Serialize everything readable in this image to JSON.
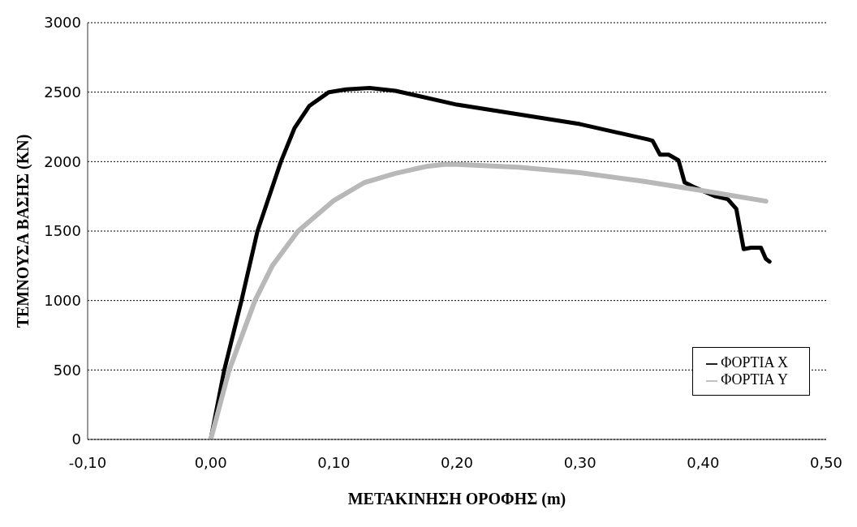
{
  "chart_data": {
    "type": "line",
    "xlabel": "ΜΕΤΑΚΙΝΗΣΗ ΟΡΟΦΗΣ (m)",
    "ylabel": "ΤΕΜΝΟΥΣΑ ΒΑΣΗΣ (KN)",
    "xlim": [
      -0.1,
      0.5
    ],
    "xticks": [
      {
        "value": -0.1,
        "label": "-0,10"
      },
      {
        "value": 0,
        "label": "0,00"
      },
      {
        "value": 0.1,
        "label": "0,10"
      },
      {
        "value": 0.2,
        "label": "0,20"
      },
      {
        "value": 0.3,
        "label": "0,30"
      },
      {
        "value": 0.4,
        "label": "0,40"
      },
      {
        "value": 0.5,
        "label": "0,50"
      }
    ],
    "ylim": [
      0,
      3000
    ],
    "yticks": [
      0,
      500,
      1000,
      1500,
      2000,
      2500,
      3000
    ],
    "grid": "y",
    "legend": "bottom right",
    "marker": "none",
    "line_style": "solid",
    "series": [
      {
        "name": "ΦΟΡΤΙΑ X",
        "color": "#000000",
        "x": [
          0,
          0.011,
          0.025,
          0.038,
          0.057,
          0.068,
          0.08,
          0.096,
          0.11,
          0.129,
          0.15,
          0.2,
          0.25,
          0.3,
          0.355,
          0.359,
          0.365,
          0.372,
          0.38,
          0.385,
          0.392,
          0.41,
          0.42,
          0.427,
          0.433,
          0.439,
          0.447,
          0.451,
          0.454
        ],
        "values": [
          0,
          500,
          1000,
          1500,
          2000,
          2240,
          2400,
          2500,
          2520,
          2530,
          2510,
          2410,
          2340,
          2270,
          2160,
          2150,
          2050,
          2050,
          2010,
          1850,
          1820,
          1750,
          1730,
          1660,
          1370,
          1380,
          1380,
          1300,
          1280
        ]
      },
      {
        "name": "ΦΟΡΤΙΑ Y",
        "color": "#b8b8b8",
        "x": [
          0,
          0.015,
          0.036,
          0.05,
          0.071,
          0.1,
          0.125,
          0.15,
          0.175,
          0.19,
          0.2,
          0.25,
          0.3,
          0.35,
          0.4,
          0.451
        ],
        "values": [
          0,
          500,
          1000,
          1250,
          1500,
          1720,
          1850,
          1915,
          1965,
          1980,
          1980,
          1960,
          1920,
          1860,
          1790,
          1715
        ]
      }
    ]
  }
}
